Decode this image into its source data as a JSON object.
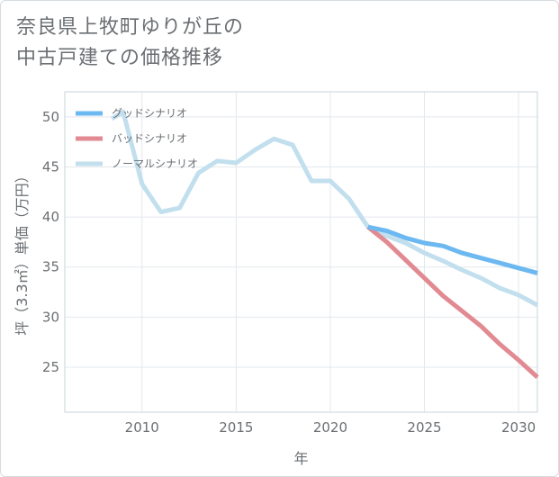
{
  "title": {
    "line1": "奈良県上牧町ゆりが丘の",
    "line2": "中古戸建ての価格推移"
  },
  "chart_data": {
    "type": "line",
    "title": "奈良県上牧町ゆりが丘の中古戸建ての価格推移",
    "xlabel": "年",
    "ylabel": "坪（3.3㎡）単価（万円）",
    "xlim": [
      2005.9,
      2031.0
    ],
    "ylim": [
      20.5,
      52.5
    ],
    "xticks": [
      2010,
      2015,
      2020,
      2025,
      2030
    ],
    "yticks": [
      25,
      30,
      35,
      40,
      45,
      50
    ],
    "grid": true,
    "legend_position": "top-left",
    "series": [
      {
        "name": "グッドシナリオ",
        "color": "#6cb8f0",
        "x": [
          2022,
          2023,
          2024,
          2025,
          2026,
          2027,
          2028,
          2029,
          2030,
          2031
        ],
        "y": [
          39.0,
          38.6,
          37.9,
          37.4,
          37.1,
          36.4,
          35.9,
          35.4,
          34.9,
          34.4
        ]
      },
      {
        "name": "バッドシナリオ",
        "color": "#e28a92",
        "x": [
          2022,
          2023,
          2024,
          2025,
          2026,
          2027,
          2028,
          2029,
          2030,
          2031
        ],
        "y": [
          39.0,
          37.5,
          35.7,
          33.9,
          32.1,
          30.6,
          29.1,
          27.3,
          25.7,
          24.0
        ]
      },
      {
        "name": "ノーマルシナリオ",
        "color": "#c2dfee",
        "x": [
          2008.4,
          2009,
          2010,
          2011,
          2012,
          2013,
          2014,
          2015,
          2016,
          2017,
          2018,
          2019,
          2020,
          2021,
          2022,
          2023,
          2024,
          2025,
          2026,
          2027,
          2028,
          2029,
          2030,
          2031
        ],
        "y": [
          49.8,
          50.5,
          43.3,
          40.5,
          40.9,
          44.4,
          45.6,
          45.4,
          46.7,
          47.8,
          47.2,
          43.6,
          43.6,
          41.8,
          39.0,
          38.1,
          37.4,
          36.4,
          35.6,
          34.7,
          33.9,
          32.9,
          32.2,
          31.2
        ]
      }
    ]
  }
}
